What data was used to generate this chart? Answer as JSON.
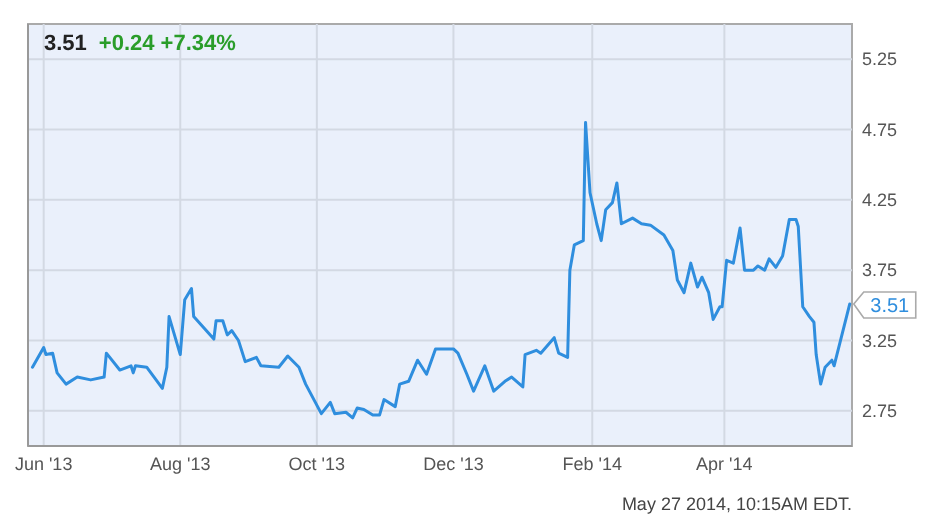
{
  "chart_data": {
    "type": "line",
    "title": "3.51",
    "subtitle": "+0.24  +7.34%",
    "annotations": [
      "May 27 2014, 10:15AM EDT."
    ],
    "x": [
      "2013-05-27",
      "2013-06-01",
      "2013-06-02",
      "2013-06-05",
      "2013-06-07",
      "2013-06-11",
      "2013-06-16",
      "2013-06-22",
      "2013-06-28",
      "2013-06-29",
      "2013-07-05",
      "2013-07-10",
      "2013-07-11",
      "2013-07-12",
      "2013-07-17",
      "2013-07-24",
      "2013-07-26",
      "2013-07-27",
      "2013-08-01",
      "2013-08-03",
      "2013-08-06",
      "2013-08-07",
      "2013-08-11",
      "2013-08-16",
      "2013-08-17",
      "2013-08-20",
      "2013-08-22",
      "2013-08-24",
      "2013-08-27",
      "2013-08-30",
      "2013-09-04",
      "2013-09-06",
      "2013-09-14",
      "2013-09-18",
      "2013-09-23",
      "2013-09-26",
      "2013-10-03",
      "2013-10-07",
      "2013-10-09",
      "2013-10-14",
      "2013-10-17",
      "2013-10-19",
      "2013-10-22",
      "2013-10-26",
      "2013-10-29",
      "2013-10-31",
      "2013-11-05",
      "2013-11-07",
      "2013-11-11",
      "2013-11-15",
      "2013-11-19",
      "2013-11-23",
      "2013-11-27",
      "2013-12-01",
      "2013-12-03",
      "2013-12-07",
      "2013-12-10",
      "2013-12-15",
      "2013-12-19",
      "2013-12-24",
      "2013-12-27",
      "2014-01-01",
      "2014-01-02",
      "2014-01-07",
      "2014-01-09",
      "2014-01-15",
      "2014-01-17",
      "2014-01-21",
      "2014-01-22",
      "2014-01-24",
      "2014-01-28",
      "2014-01-29",
      "2014-01-31",
      "2014-02-03",
      "2014-02-05",
      "2014-02-07",
      "2014-02-10",
      "2014-02-12",
      "2014-02-14",
      "2014-02-19",
      "2014-02-23",
      "2014-02-27",
      "2014-03-05",
      "2014-03-09",
      "2014-03-11",
      "2014-03-14",
      "2014-03-17",
      "2014-03-20",
      "2014-03-22",
      "2014-03-25",
      "2014-03-27",
      "2014-03-30",
      "2014-03-31",
      "2014-04-02",
      "2014-04-05",
      "2014-04-08",
      "2014-04-10",
      "2014-04-14",
      "2014-04-16",
      "2014-04-19",
      "2014-04-21",
      "2014-04-24",
      "2014-04-27",
      "2014-04-30",
      "2014-05-03",
      "2014-05-04",
      "2014-05-06",
      "2014-05-09",
      "2014-05-11",
      "2014-05-12",
      "2014-05-14",
      "2014-05-16",
      "2014-05-19",
      "2014-05-20",
      "2014-05-27"
    ],
    "series": [
      {
        "color": "#2f8ede",
        "values": [
          3.06,
          3.2,
          3.15,
          3.16,
          3.02,
          2.94,
          2.99,
          2.97,
          2.99,
          3.16,
          3.04,
          3.07,
          3.02,
          3.07,
          3.06,
          2.91,
          3.06,
          3.42,
          3.15,
          3.54,
          3.62,
          3.42,
          3.35,
          3.26,
          3.39,
          3.39,
          3.29,
          3.32,
          3.25,
          3.1,
          3.13,
          3.07,
          3.06,
          3.14,
          3.06,
          2.94,
          2.73,
          2.81,
          2.73,
          2.74,
          2.7,
          2.77,
          2.76,
          2.72,
          2.72,
          2.83,
          2.78,
          2.94,
          2.96,
          3.11,
          3.01,
          3.19,
          3.19,
          3.19,
          3.16,
          3.01,
          2.89,
          3.07,
          2.89,
          2.96,
          2.99,
          2.92,
          3.15,
          3.18,
          3.16,
          3.27,
          3.16,
          3.13,
          3.75,
          3.93,
          3.96,
          4.8,
          4.3,
          4.08,
          3.96,
          4.18,
          4.23,
          4.37,
          4.08,
          4.12,
          4.08,
          4.07,
          4.0,
          3.89,
          3.68,
          3.59,
          3.8,
          3.63,
          3.7,
          3.59,
          3.4,
          3.49,
          3.49,
          3.82,
          3.8,
          4.05,
          3.75,
          3.75,
          3.78,
          3.75,
          3.83,
          3.77,
          3.85,
          4.11,
          4.11,
          4.06,
          3.49,
          3.42,
          3.38,
          3.15,
          2.94,
          3.06,
          3.11,
          3.07,
          3.51
        ],
        "value_labels": [
          null,
          null,
          null,
          null,
          null,
          null,
          null,
          null,
          null,
          null,
          null,
          null,
          null,
          null,
          null,
          null,
          null,
          null,
          null,
          null,
          null,
          null,
          null,
          null,
          null,
          null,
          null,
          null,
          null,
          null,
          null,
          null,
          null,
          null,
          null,
          null,
          null,
          null,
          null,
          null,
          null,
          null,
          null,
          null,
          null,
          null,
          null,
          null,
          null,
          null,
          null,
          null,
          null,
          null,
          null,
          null,
          null,
          null,
          null,
          null,
          null,
          null,
          null,
          null,
          null,
          null,
          null,
          null,
          null,
          null,
          null,
          null,
          null,
          null,
          null,
          null,
          null,
          null,
          null,
          null,
          null,
          null,
          null,
          null,
          null,
          null,
          null,
          null,
          null,
          null,
          null,
          null,
          null,
          null,
          null,
          null,
          null,
          null,
          null,
          null,
          null,
          null,
          null,
          null,
          null,
          null,
          null,
          null,
          null,
          null,
          null,
          null,
          null,
          null,
          "3.51"
        ]
      }
    ],
    "xlim": [
      "2013-05-25",
      "2014-05-28"
    ],
    "xticks": [
      {
        "value": "2013-06-01",
        "label": "Jun '13"
      },
      {
        "value": "2013-08-01",
        "label": "Aug '13"
      },
      {
        "value": "2013-10-01",
        "label": "Oct '13"
      },
      {
        "value": "2013-12-01",
        "label": "Dec '13"
      },
      {
        "value": "2014-02-01",
        "label": "Feb '14"
      },
      {
        "value": "2014-04-01",
        "label": "Apr '14"
      }
    ],
    "ylim": [
      2.5,
      5.5
    ],
    "yticks": [
      2.75,
      3.25,
      3.75,
      4.25,
      4.75,
      5.25
    ],
    "grid": true,
    "marker": "none",
    "line_style": "solid"
  }
}
